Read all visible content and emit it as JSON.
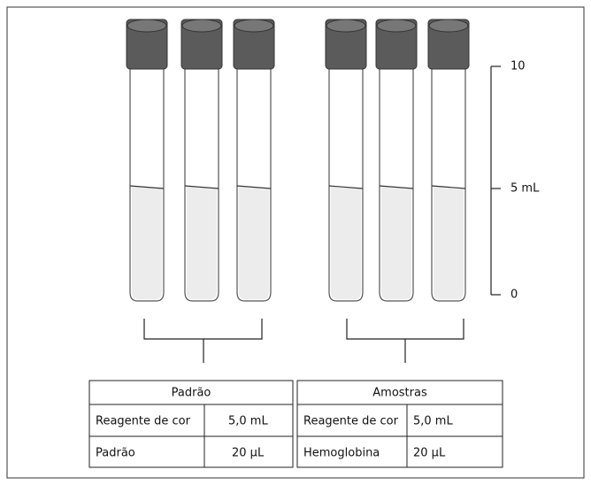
{
  "scale": {
    "labels": [
      "10",
      "5 mL",
      "0"
    ]
  },
  "tables": [
    {
      "title": "Padrão",
      "rows": [
        [
          "Reagente de cor",
          "5,0 mL"
        ],
        [
          "Padrão",
          "20 µL"
        ]
      ]
    },
    {
      "title": "Amostras",
      "rows": [
        [
          "Reagente de cor",
          "5,0 mL"
        ],
        [
          "Hemoglobina",
          "20 µL"
        ]
      ]
    }
  ]
}
